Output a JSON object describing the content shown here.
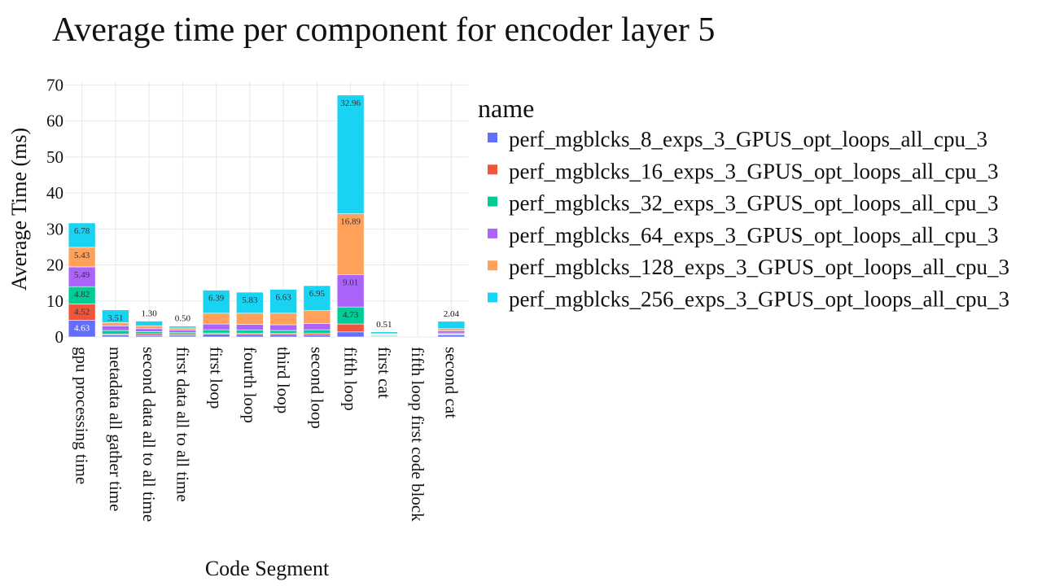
{
  "chart_data": {
    "type": "bar",
    "stacked": true,
    "title": "Average time per component for encoder layer 5",
    "xlabel": "Code Segment",
    "ylabel": "Average Time (ms)",
    "ylim": [
      0,
      71
    ],
    "yticks": [
      0,
      10,
      20,
      30,
      40,
      50,
      60,
      70
    ],
    "grid": true,
    "legend": {
      "title": "name",
      "placement": "right"
    },
    "categories": [
      "gpu processing time",
      "metadata all gather time",
      "second data all to all time",
      "first data all to all time",
      "first loop",
      "fourth loop",
      "third loop",
      "second loop",
      "fifth loop",
      "first cat",
      "fifth loop first code block",
      "second cat"
    ],
    "series": [
      {
        "name": "perf_mgblcks_8_exps_3_GPUS_opt_loops_all_cpu_3",
        "color": "#636efa",
        "values": [
          4.63,
          0.5,
          0.4,
          0.4,
          0.8,
          0.7,
          0.7,
          0.6,
          1.4,
          0.2,
          0.0,
          0.6
        ],
        "labels": [
          "4.63",
          "",
          "",
          "",
          "",
          "",
          "",
          "",
          "",
          "",
          "",
          ""
        ]
      },
      {
        "name": "perf_mgblcks_16_exps_3_GPUS_opt_loops_all_cpu_3",
        "color": "#ef553b",
        "values": [
          4.52,
          0.3,
          0.5,
          0.4,
          0.3,
          0.3,
          0.3,
          0.4,
          2.2,
          0.1,
          0.0,
          0.2
        ],
        "labels": [
          "4.52",
          "",
          "",
          "",
          "",
          "",
          "",
          "",
          "",
          "",
          "",
          ""
        ]
      },
      {
        "name": "perf_mgblcks_32_exps_3_GPUS_opt_loops_all_cpu_3",
        "color": "#00cc96",
        "values": [
          4.82,
          1.0,
          0.6,
          0.5,
          0.9,
          0.9,
          0.8,
          1.0,
          4.73,
          0.2,
          0.0,
          0.3
        ],
        "labels": [
          "4.82",
          "",
          "",
          "",
          "",
          "",
          "",
          "",
          "4.73",
          "",
          "",
          ""
        ]
      },
      {
        "name": "perf_mgblcks_64_exps_3_GPUS_opt_loops_all_cpu_3",
        "color": "#ab63fa",
        "values": [
          5.49,
          1.3,
          0.8,
          0.6,
          1.6,
          1.6,
          1.6,
          1.7,
          9.01,
          0.2,
          0.0,
          0.6
        ],
        "labels": [
          "5.49",
          "",
          "",
          "",
          "",
          "",
          "",
          "",
          "9.01",
          "",
          "",
          ""
        ]
      },
      {
        "name": "perf_mgblcks_128_exps_3_GPUS_opt_loops_all_cpu_3",
        "color": "#ffa15a",
        "values": [
          5.43,
          0.9,
          0.8,
          0.6,
          3.0,
          3.1,
          3.2,
          3.6,
          16.89,
          0.2,
          0.0,
          0.6
        ],
        "labels": [
          "5.43",
          "",
          "",
          "",
          "",
          "",
          "",
          "",
          "16.89",
          "",
          "",
          ""
        ]
      },
      {
        "name": "perf_mgblcks_256_exps_3_GPUS_opt_loops_all_cpu_3",
        "color": "#19d3f3",
        "values": [
          6.78,
          3.51,
          1.3,
          0.5,
          6.39,
          5.83,
          6.63,
          6.95,
          32.96,
          0.51,
          0.0,
          2.04
        ],
        "labels": [
          "6.78",
          "3.51",
          "1.30",
          "0.50",
          "6.39",
          "5.83",
          "6.63",
          "6.95",
          "32.96",
          "0.51",
          "",
          "2.04"
        ]
      }
    ]
  }
}
